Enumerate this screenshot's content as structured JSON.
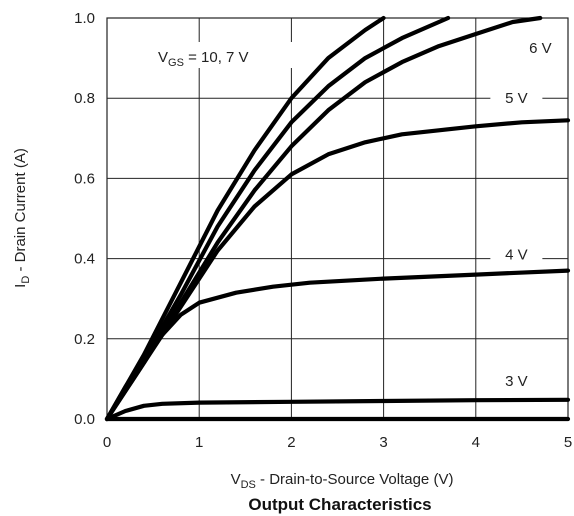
{
  "chart_data": {
    "type": "line",
    "title": "Output Characteristics",
    "xlabel_main": "V",
    "xlabel_sub": "DS",
    "xlabel_rest": " - Drain-to-Source Voltage (V)",
    "ylabel_main": "I",
    "ylabel_sub": "D",
    "ylabel_rest": " - Drain Current (A)",
    "xlim": [
      0,
      5
    ],
    "ylim": [
      0,
      1.0
    ],
    "xticks": [
      "0",
      "1",
      "2",
      "3",
      "4",
      "5"
    ],
    "yticks": [
      "0.0",
      "0.2",
      "0.4",
      "0.6",
      "0.8",
      "1.0"
    ],
    "grid": true,
    "vgs_annotation": {
      "main": "V",
      "sub": "GS",
      "rest": " = 10, 7 V"
    },
    "series": [
      {
        "name": "10 V",
        "label_text": "",
        "points": [
          [
            0,
            0
          ],
          [
            0.4,
            0.16
          ],
          [
            0.8,
            0.34
          ],
          [
            1.2,
            0.52
          ],
          [
            1.6,
            0.67
          ],
          [
            2.0,
            0.8
          ],
          [
            2.4,
            0.9
          ],
          [
            2.8,
            0.97
          ],
          [
            3.0,
            1.0
          ]
        ]
      },
      {
        "name": "7 V",
        "label_text": "",
        "points": [
          [
            0,
            0
          ],
          [
            0.4,
            0.15
          ],
          [
            0.8,
            0.31
          ],
          [
            1.2,
            0.48
          ],
          [
            1.6,
            0.62
          ],
          [
            2.0,
            0.74
          ],
          [
            2.4,
            0.83
          ],
          [
            2.8,
            0.9
          ],
          [
            3.2,
            0.95
          ],
          [
            3.7,
            1.0
          ]
        ]
      },
      {
        "name": "6 V",
        "label_text": "6 V",
        "points": [
          [
            0,
            0
          ],
          [
            0.4,
            0.14
          ],
          [
            0.8,
            0.29
          ],
          [
            1.2,
            0.44
          ],
          [
            1.6,
            0.57
          ],
          [
            2.0,
            0.68
          ],
          [
            2.4,
            0.77
          ],
          [
            2.8,
            0.84
          ],
          [
            3.2,
            0.89
          ],
          [
            3.6,
            0.93
          ],
          [
            4.0,
            0.96
          ],
          [
            4.4,
            0.99
          ],
          [
            4.7,
            1.0
          ]
        ]
      },
      {
        "name": "5 V",
        "label_text": "5 V",
        "points": [
          [
            0,
            0
          ],
          [
            0.4,
            0.14
          ],
          [
            0.8,
            0.28
          ],
          [
            1.2,
            0.42
          ],
          [
            1.6,
            0.53
          ],
          [
            2.0,
            0.61
          ],
          [
            2.4,
            0.66
          ],
          [
            2.8,
            0.69
          ],
          [
            3.2,
            0.71
          ],
          [
            3.6,
            0.72
          ],
          [
            4.0,
            0.73
          ],
          [
            4.5,
            0.74
          ],
          [
            5.0,
            0.745
          ]
        ]
      },
      {
        "name": "4 V",
        "label_text": "4 V",
        "points": [
          [
            0,
            0
          ],
          [
            0.2,
            0.08
          ],
          [
            0.4,
            0.15
          ],
          [
            0.6,
            0.21
          ],
          [
            0.8,
            0.26
          ],
          [
            1.0,
            0.29
          ],
          [
            1.4,
            0.315
          ],
          [
            1.8,
            0.33
          ],
          [
            2.2,
            0.34
          ],
          [
            3.0,
            0.35
          ],
          [
            4.0,
            0.36
          ],
          [
            5.0,
            0.37
          ]
        ]
      },
      {
        "name": "3 V",
        "label_text": "3 V",
        "points": [
          [
            0,
            0
          ],
          [
            0.2,
            0.02
          ],
          [
            0.4,
            0.033
          ],
          [
            0.6,
            0.038
          ],
          [
            1.0,
            0.041
          ],
          [
            2.0,
            0.043
          ],
          [
            3.0,
            0.045
          ],
          [
            4.0,
            0.047
          ],
          [
            5.0,
            0.048
          ]
        ]
      },
      {
        "name": "0 V",
        "label_text": "",
        "points": [
          [
            0,
            0
          ],
          [
            5.0,
            0.0
          ]
        ]
      }
    ]
  }
}
